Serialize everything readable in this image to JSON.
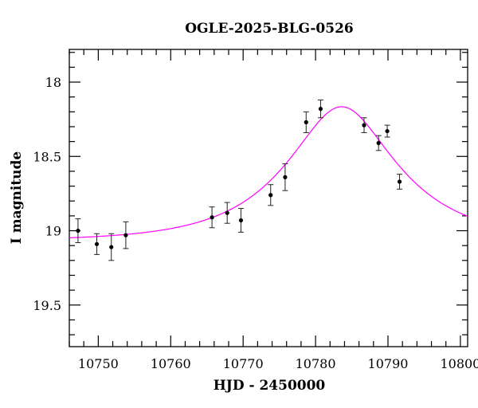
{
  "chart_data": {
    "type": "scatter",
    "title": "OGLE-2025-BLG-0526",
    "xlabel": "HJD - 2450000",
    "ylabel": "I magnitude",
    "xlim": [
      10746,
      10801
    ],
    "ylim": [
      19.78,
      17.78
    ],
    "y_inverted": true,
    "x_ticks": [
      10750,
      10760,
      10770,
      10780,
      10790,
      10800
    ],
    "y_ticks": [
      18,
      18.5,
      19,
      19.5
    ],
    "x_tick_labels": [
      "10750",
      "10760",
      "10770",
      "10780",
      "10790",
      "10800"
    ],
    "y_tick_labels": [
      "18",
      "18.5",
      "19",
      "19.5"
    ],
    "x_minor_step": 2,
    "y_minor_step": 0.1,
    "grid": false,
    "colors": {
      "points": "#000000",
      "model": "#ff00ff"
    },
    "points": [
      {
        "x": 10747.2,
        "y": 19.0,
        "err": 0.08
      },
      {
        "x": 10749.8,
        "y": 19.09,
        "err": 0.07
      },
      {
        "x": 10751.8,
        "y": 19.11,
        "err": 0.09
      },
      {
        "x": 10753.8,
        "y": 19.03,
        "err": 0.09
      },
      {
        "x": 10765.7,
        "y": 18.91,
        "err": 0.07
      },
      {
        "x": 10767.8,
        "y": 18.88,
        "err": 0.07
      },
      {
        "x": 10769.7,
        "y": 18.93,
        "err": 0.08
      },
      {
        "x": 10773.8,
        "y": 18.76,
        "err": 0.07
      },
      {
        "x": 10775.8,
        "y": 18.64,
        "err": 0.09
      },
      {
        "x": 10778.7,
        "y": 18.27,
        "err": 0.07
      },
      {
        "x": 10780.7,
        "y": 18.18,
        "err": 0.06
      },
      {
        "x": 10786.7,
        "y": 18.29,
        "err": 0.05
      },
      {
        "x": 10788.7,
        "y": 18.41,
        "err": 0.05
      },
      {
        "x": 10789.9,
        "y": 18.33,
        "err": 0.04
      },
      {
        "x": 10791.6,
        "y": 18.67,
        "err": 0.05
      }
    ],
    "model": {
      "type": "pspl",
      "t0": 10783.6,
      "tE": 13.5,
      "u0": 0.47,
      "baseline": 19.07
    }
  }
}
